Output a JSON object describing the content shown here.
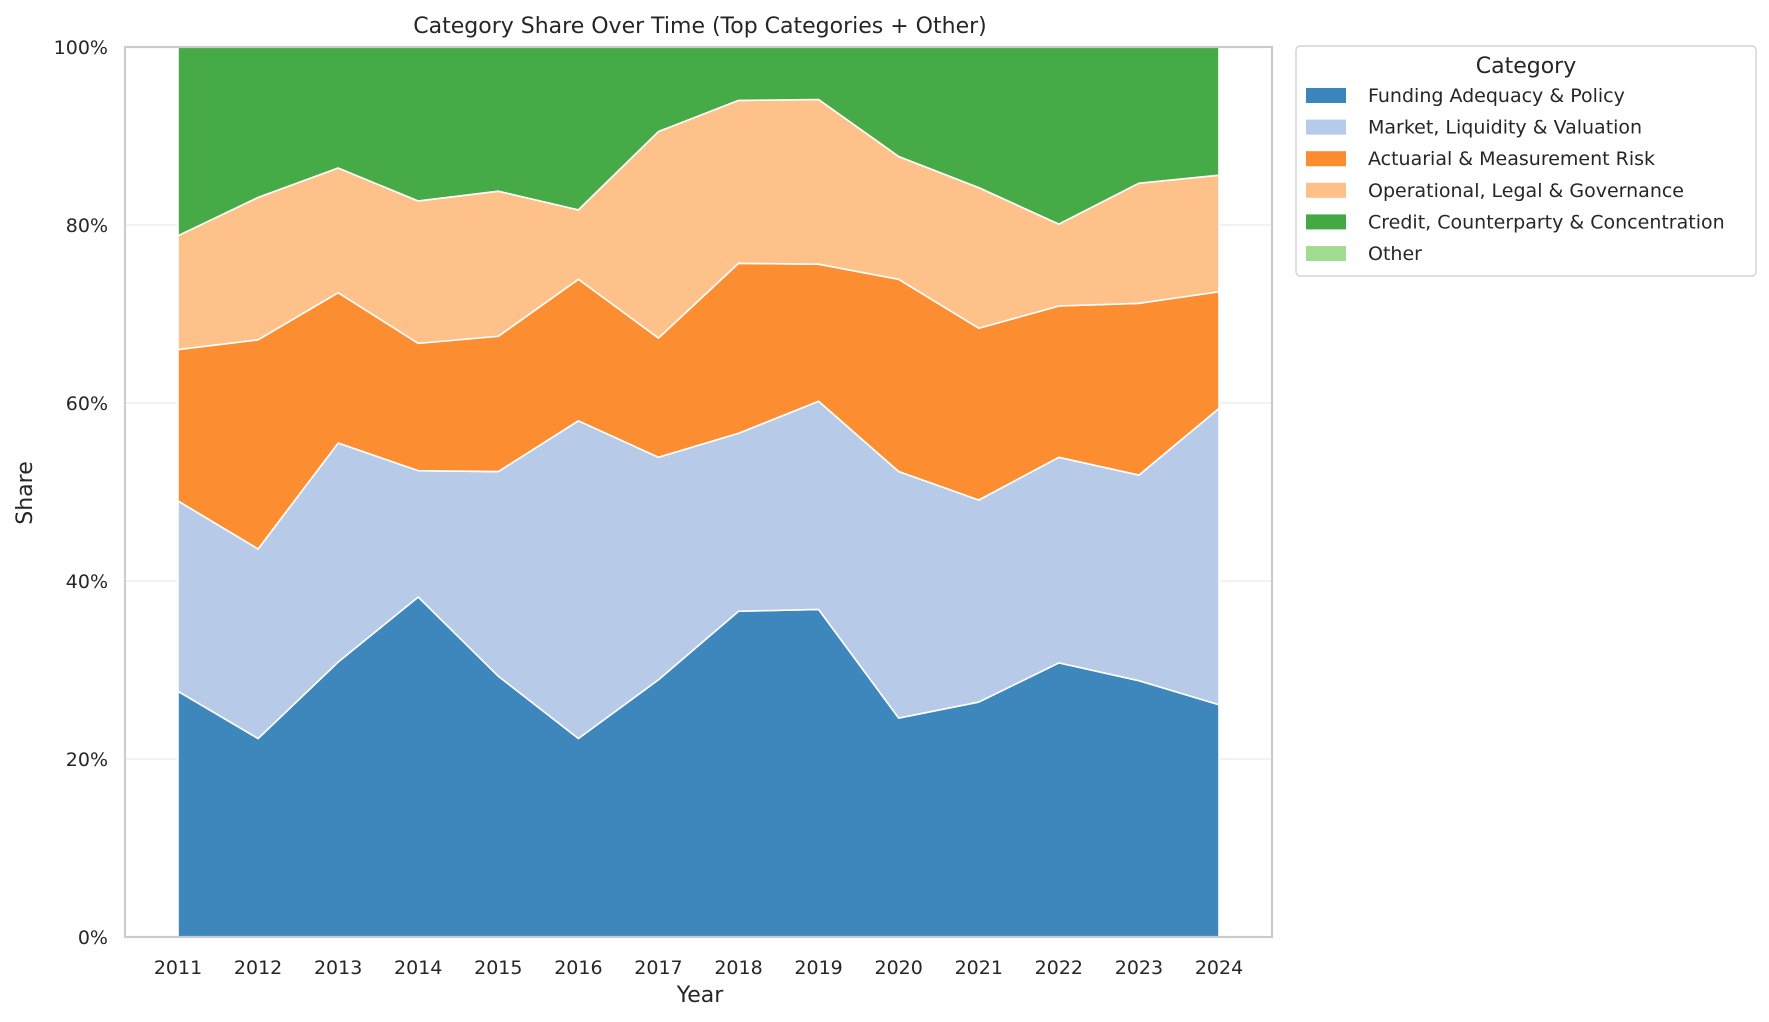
{
  "chart_data": {
    "type": "area",
    "stacked": true,
    "normalized": true,
    "title": "Category Share Over Time (Top Categories + Other)",
    "xlabel": "Year",
    "ylabel": "Share",
    "x": [
      "2011",
      "2012",
      "2013",
      "2014",
      "2015",
      "2016",
      "2017",
      "2018",
      "2019",
      "2020",
      "2021",
      "2022",
      "2023",
      "2024"
    ],
    "ylim": [
      0,
      100
    ],
    "yticks": [
      "0%",
      "20%",
      "40%",
      "60%",
      "80%",
      "100%"
    ],
    "grid": true,
    "legend": {
      "title": "Category",
      "placement": "outside-top-right"
    },
    "series": [
      {
        "name": "Funding Adequacy & Policy",
        "color": "#3a85bc",
        "values": [
          27.6,
          22.3,
          30.9,
          38.2,
          29.3,
          22.3,
          28.9,
          36.6,
          36.8,
          24.6,
          26.4,
          30.8,
          28.8,
          26.1
        ]
      },
      {
        "name": "Market, Liquidity & Valuation",
        "color": "#b6cae9",
        "values": [
          21.4,
          21.3,
          24.6,
          14.2,
          23.0,
          35.7,
          25.0,
          20.0,
          23.4,
          27.7,
          22.7,
          23.1,
          23.1,
          33.3
        ]
      },
      {
        "name": "Actuarial & Measurement Risk",
        "color": "#fc8c2d",
        "values": [
          17.0,
          23.5,
          16.9,
          14.3,
          15.2,
          15.9,
          13.4,
          19.1,
          15.4,
          21.6,
          19.3,
          17.0,
          19.3,
          13.1
        ]
      },
      {
        "name": "Operational, Legal & Governance",
        "color": "#fec088",
        "values": [
          12.8,
          16.0,
          14.0,
          16.0,
          16.3,
          7.8,
          23.2,
          18.3,
          18.5,
          13.8,
          15.8,
          9.2,
          13.5,
          13.1
        ]
      },
      {
        "name": "Credit, Counterparty & Concentration",
        "color": "#42a943",
        "values": [
          21.2,
          16.9,
          13.6,
          17.3,
          16.2,
          18.3,
          9.5,
          6.0,
          5.9,
          12.3,
          15.8,
          19.9,
          15.3,
          14.4
        ]
      },
      {
        "name": "Other",
        "color": "#a1dd8f",
        "values": [
          0,
          0,
          0,
          0,
          0,
          0,
          0,
          0,
          0,
          0,
          0,
          0,
          0,
          0
        ]
      }
    ]
  }
}
